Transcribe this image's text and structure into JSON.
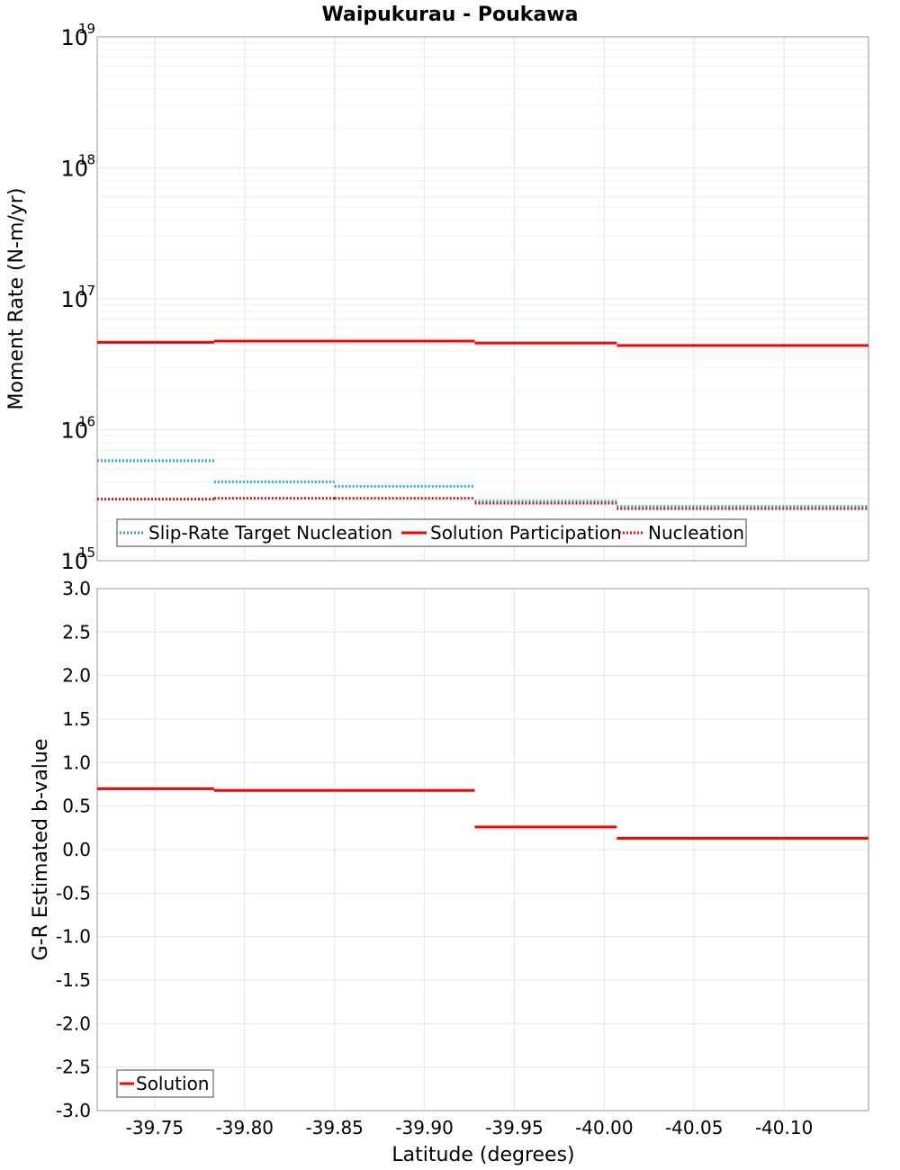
{
  "title": "Waipukurau - Poukawa",
  "colors": {
    "slip_rate": "#1fb5b5",
    "solution": "#ff0000",
    "nucleation": "#e01010",
    "grid": "#e6e6e6",
    "frame": "#999999"
  },
  "chart_data": [
    {
      "type": "line",
      "title": "Waipukurau - Poukawa",
      "xlabel": "Latitude (degrees)",
      "ylabel": "Moment Rate (N-m/yr)",
      "yscale": "log",
      "xlim": [
        -39.718,
        -40.147
      ],
      "ylim": [
        1000000000000000.0,
        1e+19
      ],
      "y_tick_labels": [
        {
          "base": "10",
          "exp": "15",
          "value": 1000000000000000.0
        },
        {
          "base": "10",
          "exp": "16",
          "value": 1e+16
        },
        {
          "base": "10",
          "exp": "17",
          "value": 1e+17
        },
        {
          "base": "10",
          "exp": "18",
          "value": 1e+18
        },
        {
          "base": "10",
          "exp": "19",
          "value": 1e+19
        }
      ],
      "grid": true,
      "legend_position": "bottom-left",
      "series": [
        {
          "name": "Slip-Rate Target Nucleation",
          "style": "dotted",
          "color": "#1fb5b5",
          "segments": [
            {
              "x": [
                -39.718,
                -39.783
              ],
              "y": 5800000000000000.0
            },
            {
              "x": [
                -39.783,
                -39.85
              ],
              "y": 4000000000000000.0
            },
            {
              "x": [
                -39.85,
                -39.928
              ],
              "y": 3700000000000000.0
            },
            {
              "x": [
                -39.928,
                -40.007
              ],
              "y": 2850000000000000.0
            },
            {
              "x": [
                -40.007,
                -40.147
              ],
              "y": 2600000000000000.0
            }
          ]
        },
        {
          "name": "Solution Participation",
          "style": "solid",
          "color": "#ff0000",
          "segments": [
            {
              "x": [
                -39.718,
                -39.783
              ],
              "y": 4.65e+16
            },
            {
              "x": [
                -39.783,
                -39.85
              ],
              "y": 4.75e+16
            },
            {
              "x": [
                -39.85,
                -39.928
              ],
              "y": 4.75e+16
            },
            {
              "x": [
                -39.928,
                -40.007
              ],
              "y": 4.6e+16
            },
            {
              "x": [
                -40.007,
                -40.147
              ],
              "y": 4.4e+16
            }
          ]
        },
        {
          "name": "Nucleation",
          "style": "dotted",
          "color": "#e01010",
          "segments": [
            {
              "x": [
                -39.718,
                -39.783
              ],
              "y": 2950000000000000.0
            },
            {
              "x": [
                -39.783,
                -39.85
              ],
              "y": 3000000000000000.0
            },
            {
              "x": [
                -39.85,
                -39.928
              ],
              "y": 3000000000000000.0
            },
            {
              "x": [
                -39.928,
                -40.007
              ],
              "y": 2750000000000000.0
            },
            {
              "x": [
                -40.007,
                -40.147
              ],
              "y": 2500000000000000.0
            }
          ]
        }
      ]
    },
    {
      "type": "line",
      "xlabel": "Latitude (degrees)",
      "ylabel": "G-R Estimated b-value",
      "xlim": [
        -39.718,
        -40.147
      ],
      "ylim": [
        -3.0,
        3.0
      ],
      "x_tick_labels": [
        "-39.75",
        "-39.80",
        "-39.85",
        "-39.90",
        "-39.95",
        "-40.00",
        "-40.05",
        "-40.10"
      ],
      "x_ticks": [
        -39.75,
        -39.8,
        -39.85,
        -39.9,
        -39.95,
        -40.0,
        -40.05,
        -40.1
      ],
      "y_tick_labels": [
        "3.0",
        "2.5",
        "2.0",
        "1.5",
        "1.0",
        "0.5",
        "0.0",
        "-0.5",
        "-1.0",
        "-1.5",
        "-2.0",
        "-2.5",
        "-3.0"
      ],
      "y_ticks": [
        3.0,
        2.5,
        2.0,
        1.5,
        1.0,
        0.5,
        0.0,
        -0.5,
        -1.0,
        -1.5,
        -2.0,
        -2.5,
        -3.0
      ],
      "grid": true,
      "legend_position": "bottom-left",
      "series": [
        {
          "name": "Solution",
          "style": "solid",
          "color": "#ff0000",
          "segments": [
            {
              "x": [
                -39.718,
                -39.783
              ],
              "y": 0.7
            },
            {
              "x": [
                -39.783,
                -39.85
              ],
              "y": 0.68
            },
            {
              "x": [
                -39.85,
                -39.928
              ],
              "y": 0.68
            },
            {
              "x": [
                -39.928,
                -40.007
              ],
              "y": 0.26
            },
            {
              "x": [
                -40.007,
                -40.147
              ],
              "y": 0.13
            }
          ]
        }
      ]
    }
  ]
}
